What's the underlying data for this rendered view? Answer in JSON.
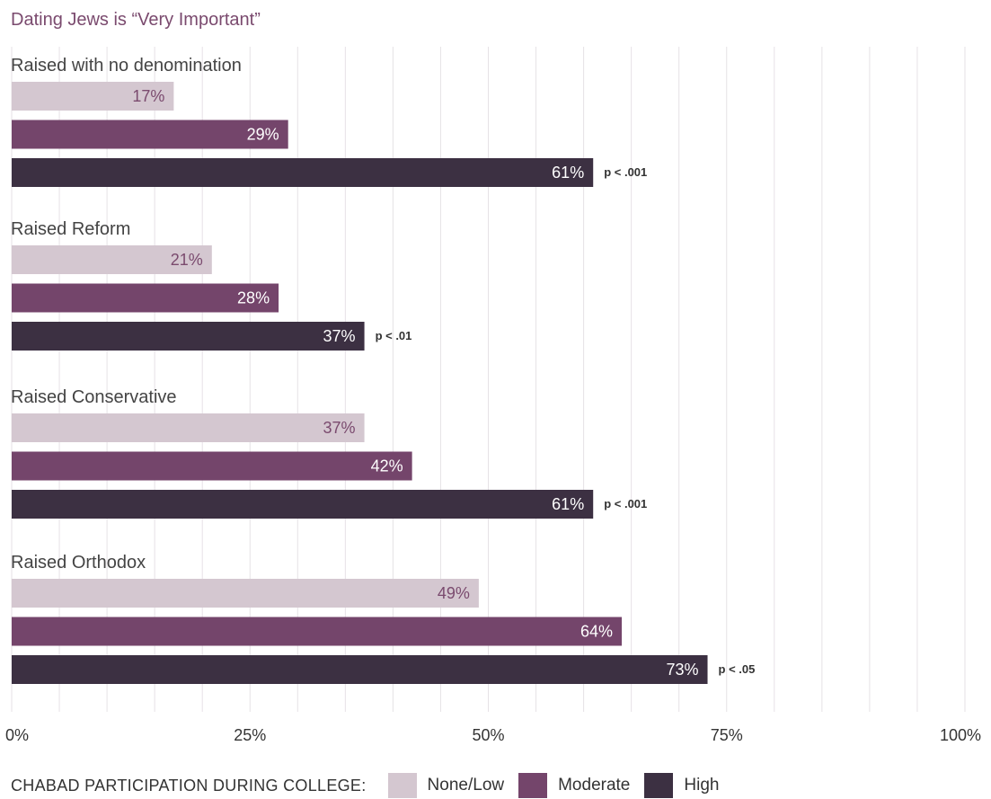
{
  "chart_data": {
    "type": "bar",
    "orientation": "horizontal",
    "title": "Dating Jews is “Very Important”",
    "xlim": [
      0,
      100
    ],
    "x_ticks": [
      "0%",
      "25%",
      "50%",
      "75%",
      "100%"
    ],
    "grid": true,
    "legend_position": "bottom-left",
    "legend_title": "CHABAD PARTICIPATION DURING COLLEGE:",
    "series": [
      {
        "name": "None/Low",
        "color": "#d4c7d0",
        "label_color": "#7a4a6e"
      },
      {
        "name": "Moderate",
        "color": "#74456b",
        "label_color": "#ffffff"
      },
      {
        "name": "High",
        "color": "#3c3042",
        "label_color": "#ffffff"
      }
    ],
    "groups": [
      {
        "label": "Raised with no denomination",
        "values": [
          17,
          29,
          61
        ],
        "value_labels": [
          "17%",
          "29%",
          "61%"
        ],
        "significance": "p < .001"
      },
      {
        "label": "Raised Reform",
        "values": [
          21,
          28,
          37
        ],
        "value_labels": [
          "21%",
          "28%",
          "37%"
        ],
        "significance": "p < .01"
      },
      {
        "label": "Raised Conservative",
        "values": [
          37,
          42,
          61
        ],
        "value_labels": [
          "37%",
          "42%",
          "61%"
        ],
        "significance": "p < .001"
      },
      {
        "label": "Raised Orthodox",
        "values": [
          49,
          64,
          73
        ],
        "value_labels": [
          "49%",
          "64%",
          "73%"
        ],
        "significance": "p < .05"
      }
    ]
  }
}
